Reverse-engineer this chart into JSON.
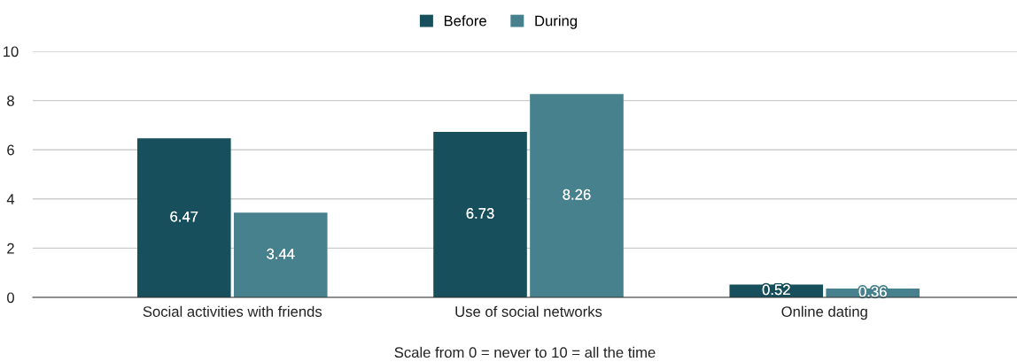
{
  "chart_data": {
    "type": "bar",
    "categories": [
      "Social activities with friends",
      "Use of social networks",
      "Online dating"
    ],
    "series": [
      {
        "name": "Before",
        "color": "#174f5c",
        "values": [
          6.47,
          6.73,
          0.52
        ]
      },
      {
        "name": "During",
        "color": "#46818d",
        "values": [
          3.44,
          8.26,
          0.36
        ]
      }
    ],
    "xlabel": "Scale from 0 = never to 10 = all the time",
    "ylim": [
      0,
      10
    ],
    "yticks": [
      0,
      2,
      4,
      6,
      8,
      10
    ],
    "grid": "y",
    "legend": "top",
    "data_labels": true
  }
}
